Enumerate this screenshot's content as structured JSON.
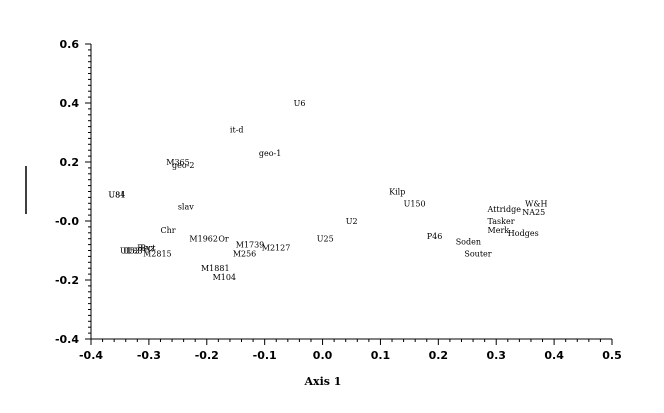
{
  "chart_data": {
    "type": "scatter",
    "title": "",
    "xlabel": "Axis 1",
    "ylabel": "",
    "xlim": [
      -0.4,
      0.5
    ],
    "ylim": [
      -0.4,
      0.6
    ],
    "xticks": [
      "-0.4",
      "-0.3",
      "-0.2",
      "-0.1",
      "0.0",
      "0.1",
      "0.2",
      "0.3",
      "0.4",
      "0.5"
    ],
    "yticks": [
      "0.6",
      "0.4",
      "0.2",
      "-0.0",
      "-0.2",
      "-0.4"
    ],
    "grid": false,
    "points": [
      {
        "label": "U6",
        "x": -0.05,
        "y": 0.4
      },
      {
        "label": "it-d",
        "x": -0.16,
        "y": 0.31
      },
      {
        "label": "geo-1",
        "x": -0.11,
        "y": 0.23
      },
      {
        "label": "M365",
        "x": -0.27,
        "y": 0.2
      },
      {
        "label": "geo-2",
        "x": -0.26,
        "y": 0.19
      },
      {
        "label": "U81",
        "x": -0.37,
        "y": 0.09
      },
      {
        "label": "U84",
        "x": -0.37,
        "y": 0.09
      },
      {
        "label": "slav",
        "x": -0.25,
        "y": 0.05
      },
      {
        "label": "Chr",
        "x": -0.28,
        "y": -0.03
      },
      {
        "label": "M1962",
        "x": -0.23,
        "y": -0.06
      },
      {
        "label": "Or",
        "x": -0.18,
        "y": -0.06
      },
      {
        "label": "U1",
        "x": -0.35,
        "y": -0.1
      },
      {
        "label": "U53",
        "x": -0.345,
        "y": -0.1
      },
      {
        "label": "U83",
        "x": -0.34,
        "y": -0.1
      },
      {
        "label": "Bect",
        "x": -0.32,
        "y": -0.09
      },
      {
        "label": "Byz",
        "x": -0.315,
        "y": -0.09
      },
      {
        "label": "M2815",
        "x": -0.31,
        "y": -0.11
      },
      {
        "label": "M1739",
        "x": -0.15,
        "y": -0.08
      },
      {
        "label": "M2127",
        "x": -0.105,
        "y": -0.09
      },
      {
        "label": "M256",
        "x": -0.155,
        "y": -0.11
      },
      {
        "label": "M1881",
        "x": -0.21,
        "y": -0.16
      },
      {
        "label": "M104",
        "x": -0.19,
        "y": -0.19
      },
      {
        "label": "U25",
        "x": -0.01,
        "y": -0.06
      },
      {
        "label": "U2",
        "x": 0.04,
        "y": 0.0
      },
      {
        "label": "Kilp",
        "x": 0.115,
        "y": 0.1
      },
      {
        "label": "U150",
        "x": 0.14,
        "y": 0.06
      },
      {
        "label": "P46",
        "x": 0.18,
        "y": -0.05
      },
      {
        "label": "Soden",
        "x": 0.23,
        "y": -0.07
      },
      {
        "label": "Souter",
        "x": 0.245,
        "y": -0.11
      },
      {
        "label": "Attridge",
        "x": 0.285,
        "y": 0.04
      },
      {
        "label": "Tasker",
        "x": 0.285,
        "y": 0.0
      },
      {
        "label": "Merk",
        "x": 0.285,
        "y": -0.03
      },
      {
        "label": "W&H",
        "x": 0.35,
        "y": 0.06
      },
      {
        "label": "NA25",
        "x": 0.345,
        "y": 0.03
      },
      {
        "label": "Hodges",
        "x": 0.32,
        "y": -0.04
      }
    ]
  }
}
